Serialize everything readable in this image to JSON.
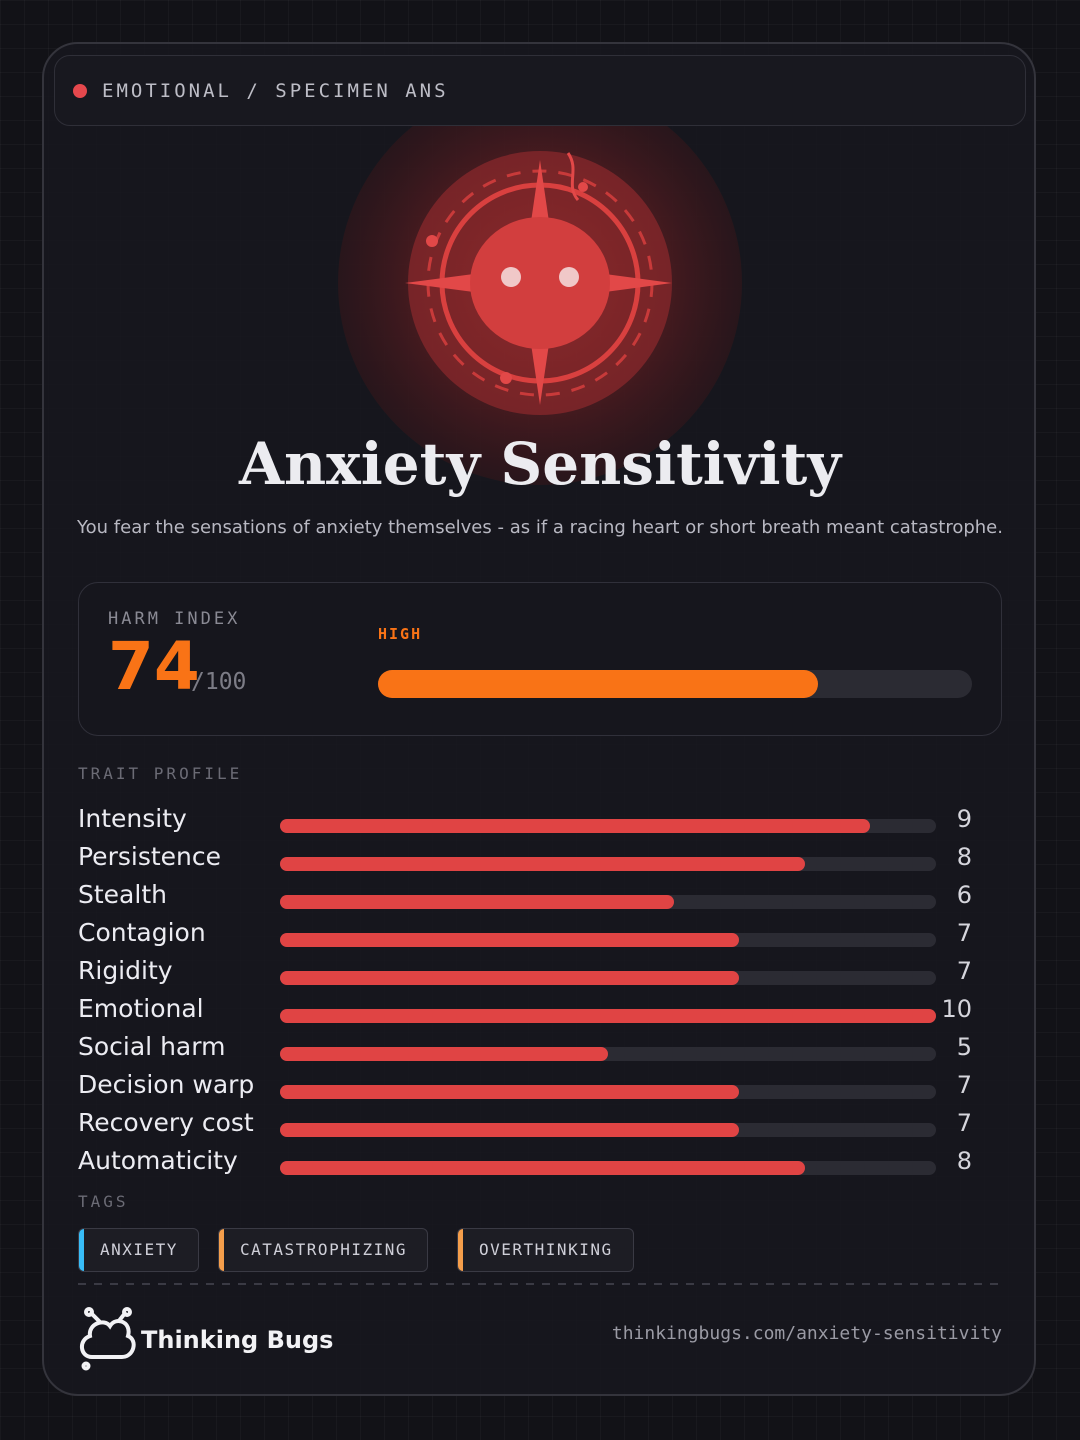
{
  "header": {
    "label": "EMOTIONAL / SPECIMEN ANS"
  },
  "title": "Anxiety Sensitivity",
  "description": "You fear the sensations of anxiety themselves - as if a racing heart or short breath meant catastrophe.",
  "harm_index": {
    "label": "HARM INDEX",
    "value": 74,
    "max": {
      "value": 100,
      "label": "/100"
    },
    "level": "HIGH",
    "color": "#f97316"
  },
  "trait_profile": {
    "label": "TRAIT PROFILE",
    "color": "#e04444",
    "traits": [
      {
        "label": "Intensity",
        "value": 9
      },
      {
        "label": "Persistence",
        "value": 8
      },
      {
        "label": "Stealth",
        "value": 6
      },
      {
        "label": "Contagion",
        "value": 7
      },
      {
        "label": "Rigidity",
        "value": 7
      },
      {
        "label": "Emotional",
        "value": 10
      },
      {
        "label": "Social harm",
        "value": 5
      },
      {
        "label": "Decision warp",
        "value": 7
      },
      {
        "label": "Recovery cost",
        "value": 7
      },
      {
        "label": "Automaticity",
        "value": 8
      }
    ]
  },
  "tags": {
    "label": "TAGS",
    "items": [
      {
        "label": "ANXIETY",
        "color": "#38bdf8"
      },
      {
        "label": "CATASTROPHIZING",
        "color": "#f59e4b"
      },
      {
        "label": "OVERTHINKING",
        "color": "#f59e4b"
      }
    ]
  },
  "footer": {
    "brand": "Thinking Bugs",
    "url": "thinkingbugs.com/anxiety-sensitivity"
  }
}
